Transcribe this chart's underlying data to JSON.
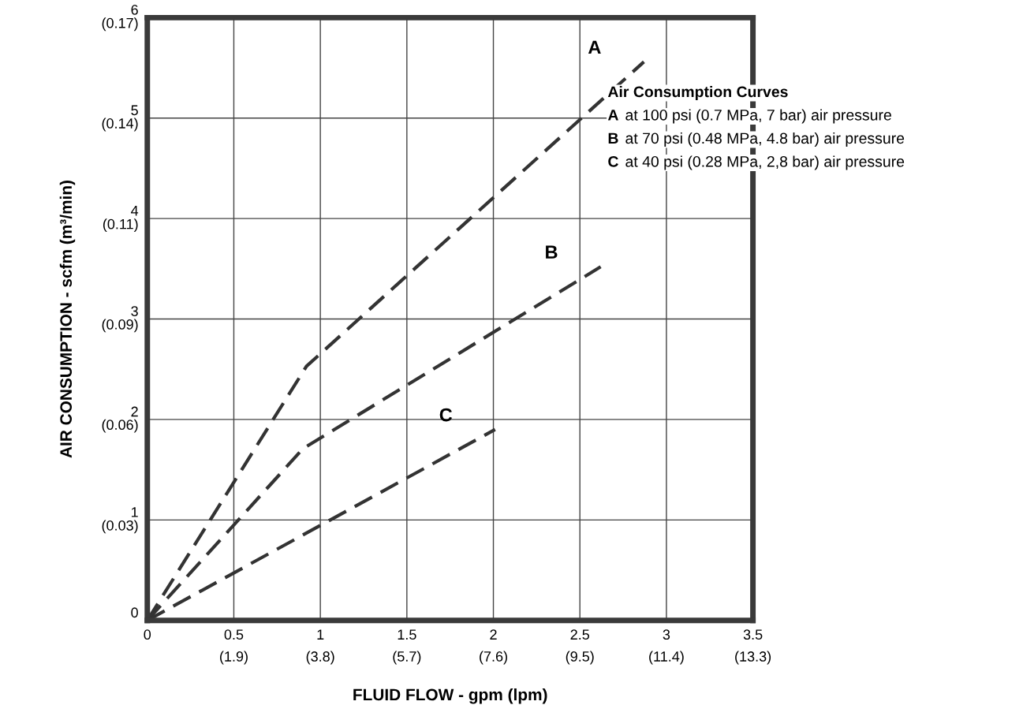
{
  "chart_data": {
    "type": "line",
    "xlabel": "FLUID FLOW - gpm (lpm)",
    "y2label": "AIR CONSUMPTION - scfm (m³/min)",
    "series": [
      {
        "name": "A",
        "color": "#333333",
        "x": [
          0,
          0.92,
          2.87
        ],
        "values": [
          0,
          2.53,
          5.56
        ]
      },
      {
        "name": "B",
        "color": "#333333",
        "x": [
          0,
          0.9,
          2.62
        ],
        "values": [
          0,
          1.71,
          3.52
        ]
      },
      {
        "name": "C",
        "color": "#333333",
        "x": [
          0,
          2.01
        ],
        "values": [
          0,
          1.9
        ]
      }
    ],
    "xlim": [
      0,
      3.5
    ],
    "ylim": [
      0,
      6
    ],
    "xticks": [
      0,
      0.5,
      1,
      1.5,
      2,
      2.5,
      3,
      3.5
    ],
    "yticks": [
      0,
      1,
      2,
      3,
      4,
      5,
      6
    ],
    "x2lim": [
      0,
      13.3
    ],
    "x2ticks": [
      {
        "value": 1.9,
        "label": "(1.9)"
      },
      {
        "value": 3.8,
        "label": "(3.8)"
      },
      {
        "value": 5.7,
        "label": "(5.7)"
      },
      {
        "value": 7.6,
        "label": "(7.6)"
      },
      {
        "value": 9.5,
        "label": "(9.5)"
      },
      {
        "value": 11.4,
        "label": "(11.4)"
      },
      {
        "value": 13.3,
        "label": "(13.3)"
      }
    ],
    "y2lim": [
      0,
      0.17
    ],
    "y2ticks": [
      {
        "value": 0.0283,
        "label": "(0.03)"
      },
      {
        "value": 0.0567,
        "label": "(0.06)"
      },
      {
        "value": 0.085,
        "label": "(0.09)"
      },
      {
        "value": 0.1133,
        "label": "(0.11)"
      },
      {
        "value": 0.1417,
        "label": "(0.14)"
      },
      {
        "value": 0.17,
        "label": "(0.17)"
      }
    ],
    "grid": true,
    "line_style": "dashed",
    "marker": "none",
    "annotations": [
      "Air Consumption Curves",
      "A at 100 psi (0.7 MPa, 7 bar) air pressure",
      "B at 70 psi (0.48 MPa, 4.8 bar) air pressure",
      "C at 40 psi (0.28 MPa, 2,8 bar) air pressure"
    ]
  }
}
